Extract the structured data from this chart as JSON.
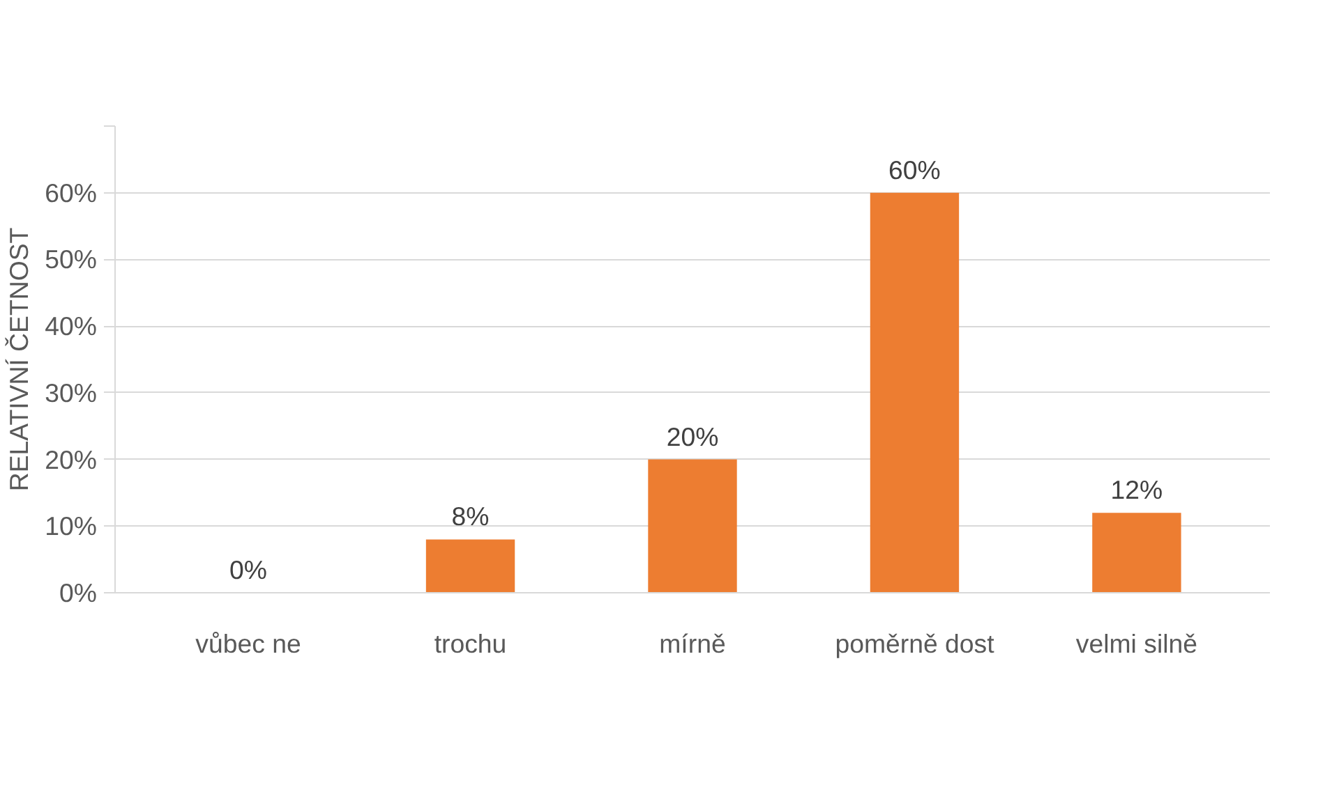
{
  "chart_data": {
    "type": "bar",
    "ylabel": "RELATIVNÍ ČETNOST",
    "categories": [
      "vůbec ne",
      "trochu",
      "mírně",
      "poměrně dost",
      "velmi silně"
    ],
    "values": [
      0,
      8,
      20,
      60,
      12
    ],
    "value_labels": [
      "0%",
      "8%",
      "20%",
      "60%",
      "12%"
    ],
    "color": "#ed7d31",
    "ylim": [
      0,
      70
    ],
    "yticks": [
      {
        "value": 0,
        "label": "0%"
      },
      {
        "value": 10,
        "label": "10%"
      },
      {
        "value": 20,
        "label": "20%"
      },
      {
        "value": 30,
        "label": "30%"
      },
      {
        "value": 40,
        "label": "40%"
      },
      {
        "value": 50,
        "label": "50%"
      },
      {
        "value": 60,
        "label": "60%"
      },
      {
        "value": 70,
        "label": null
      }
    ],
    "grid": "y"
  }
}
